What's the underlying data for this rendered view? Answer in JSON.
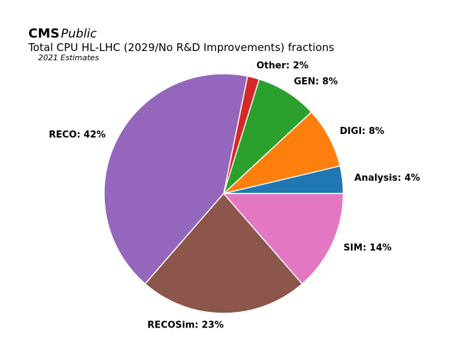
{
  "header": {
    "brand_bold": "CMS",
    "brand_italic": "Public",
    "title": "Total CPU HL-LHC (2029/No R&D Improvements) fractions",
    "subtitle": "2021 Estimates"
  },
  "chart_data": {
    "type": "pie",
    "title": "Total CPU HL-LHC (2029/No R&D Improvements) fractions",
    "subtitle": "2021 Estimates",
    "start_angle_deg": 0,
    "direction": "counterclockwise",
    "slices": [
      {
        "label": "Analysis: 4%",
        "name": "Analysis",
        "value": 3.7,
        "color": "#1f77b4"
      },
      {
        "label": "DIGI: 8%",
        "name": "DIGI",
        "value": 8.2,
        "color": "#ff7f0e"
      },
      {
        "label": "GEN: 8%",
        "name": "GEN",
        "value": 8.3,
        "color": "#2ca02c"
      },
      {
        "label": "Other: 2%",
        "name": "Other",
        "value": 1.6,
        "color": "#d62728"
      },
      {
        "label": "RECO: 42%",
        "name": "RECO",
        "value": 41.8,
        "color": "#9467bd"
      },
      {
        "label": "RECOSim: 23%",
        "name": "RECOSim",
        "value": 22.8,
        "color": "#8c564b"
      },
      {
        "label": "SIM: 14%",
        "name": "SIM",
        "value": 13.6,
        "color": "#e377c2"
      }
    ],
    "legend": "none"
  }
}
